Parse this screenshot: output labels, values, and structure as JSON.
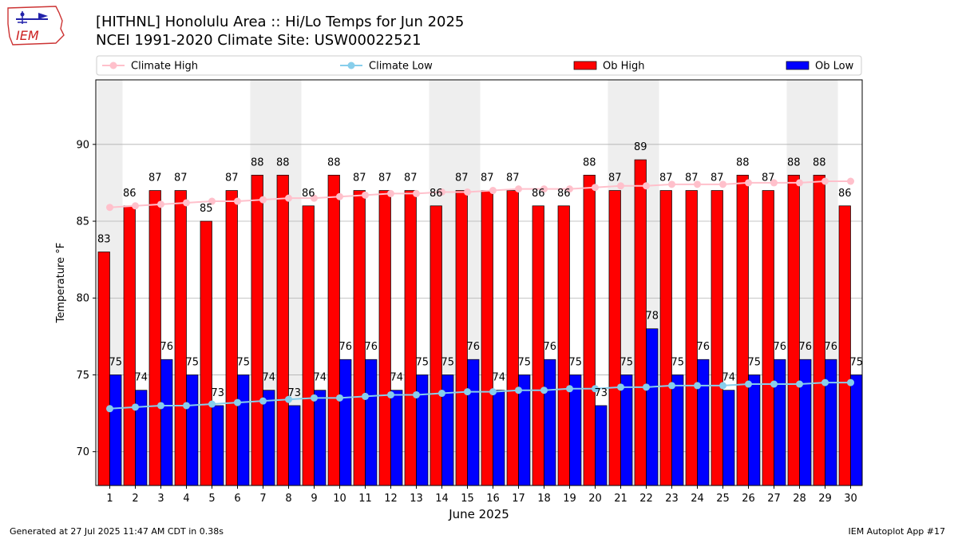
{
  "header": {
    "title_line1": "[HITHNL] Honolulu Area :: Hi/Lo Temps for Jun 2025",
    "title_line2": "NCEI 1991-2020 Climate Site: USW00022521"
  },
  "logo": {
    "text": "IEM"
  },
  "footer": {
    "generated": "Generated at 27 Jul 2025 11:47 AM CDT in 0.38s",
    "app": "IEM Autoplot App #17"
  },
  "colors": {
    "climate_high": "#ffc0cb",
    "climate_low": "#87ceeb",
    "ob_high": "#ff0000",
    "ob_low": "#0000ff",
    "weekend_shade": "#eeeeee",
    "grid": "#b0b0b0"
  },
  "chart_data": {
    "type": "bar",
    "xlabel": "June 2025",
    "ylabel": "Temperature °F",
    "ylim": [
      67.8,
      94.2
    ],
    "yticks": [
      70,
      75,
      80,
      85,
      90
    ],
    "grid": "horizontal",
    "legend_placement": "top",
    "legend": [
      "Climate High",
      "Climate Low",
      "Ob High",
      "Ob Low"
    ],
    "shaded_days": [
      1,
      7,
      8,
      14,
      15,
      21,
      22,
      28,
      29
    ],
    "days": [
      1,
      2,
      3,
      4,
      5,
      6,
      7,
      8,
      9,
      10,
      11,
      12,
      13,
      14,
      15,
      16,
      17,
      18,
      19,
      20,
      21,
      22,
      23,
      24,
      25,
      26,
      27,
      28,
      29,
      30
    ],
    "series": [
      {
        "name": "Ob High",
        "type": "bar",
        "values": [
          83,
          86,
          87,
          87,
          85,
          87,
          88,
          88,
          86,
          88,
          87,
          87,
          87,
          86,
          87,
          87,
          87,
          86,
          86,
          88,
          87,
          89,
          87,
          87,
          87,
          88,
          87,
          88,
          88,
          86
        ]
      },
      {
        "name": "Ob Low",
        "type": "bar",
        "values": [
          75,
          74,
          76,
          75,
          73,
          75,
          74,
          73,
          74,
          76,
          76,
          74,
          75,
          75,
          76,
          74,
          75,
          76,
          75,
          73,
          75,
          78,
          75,
          76,
          74,
          75,
          76,
          76,
          76,
          75
        ]
      },
      {
        "name": "Climate High",
        "type": "line",
        "values": [
          85.9,
          86.0,
          86.1,
          86.2,
          86.3,
          86.3,
          86.4,
          86.5,
          86.5,
          86.6,
          86.7,
          86.8,
          86.8,
          86.9,
          86.9,
          87.0,
          87.1,
          87.1,
          87.1,
          87.2,
          87.3,
          87.3,
          87.4,
          87.4,
          87.4,
          87.5,
          87.5,
          87.5,
          87.6,
          87.6
        ]
      },
      {
        "name": "Climate Low",
        "type": "line",
        "values": [
          72.8,
          72.9,
          73.0,
          73.0,
          73.1,
          73.2,
          73.3,
          73.4,
          73.5,
          73.5,
          73.6,
          73.7,
          73.7,
          73.8,
          73.9,
          73.9,
          74.0,
          74.0,
          74.1,
          74.1,
          74.2,
          74.2,
          74.3,
          74.3,
          74.3,
          74.4,
          74.4,
          74.4,
          74.5,
          74.5
        ]
      }
    ]
  }
}
